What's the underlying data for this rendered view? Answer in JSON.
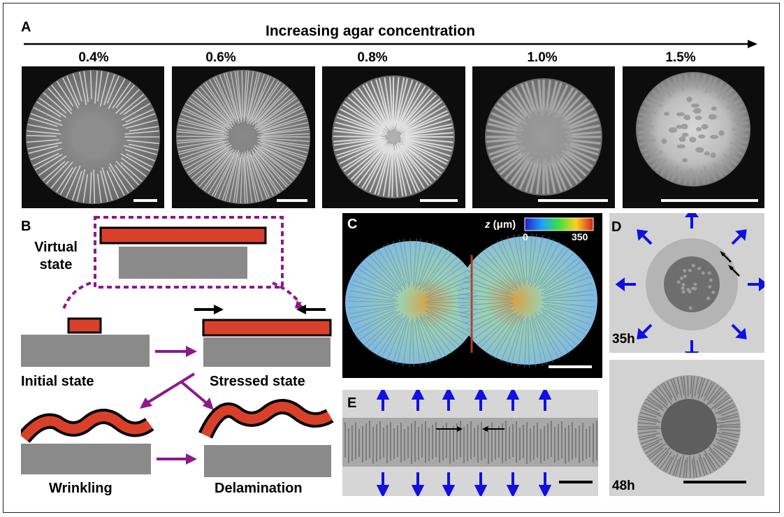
{
  "panel_a": {
    "letter": "A",
    "title": "Increasing agar concentration",
    "concentrations": [
      "0.4%",
      "0.6%",
      "0.8%",
      "1.0%",
      "1.5%"
    ]
  },
  "panel_b": {
    "letter": "B",
    "virtual_state": [
      "Virtual",
      "state"
    ],
    "initial_state": "Initial state",
    "stressed_state": "Stressed state",
    "wrinkling": "Wrinkling",
    "delamination": "Delamination"
  },
  "panel_c": {
    "letter": "C",
    "colorbar_label_italic": "z",
    "colorbar_label_rest": " (μm)",
    "colorbar_min": "0",
    "colorbar_max": "350"
  },
  "panel_d": {
    "letter": "D",
    "time_top": "35h",
    "time_bottom": "48h"
  },
  "panel_e": {
    "letter": "E"
  },
  "colors": {
    "film": "#d9402a",
    "substrate": "#8a8a8a",
    "process_arrow": "#8b1a8b",
    "expansion_arrow": "#1010e0"
  }
}
